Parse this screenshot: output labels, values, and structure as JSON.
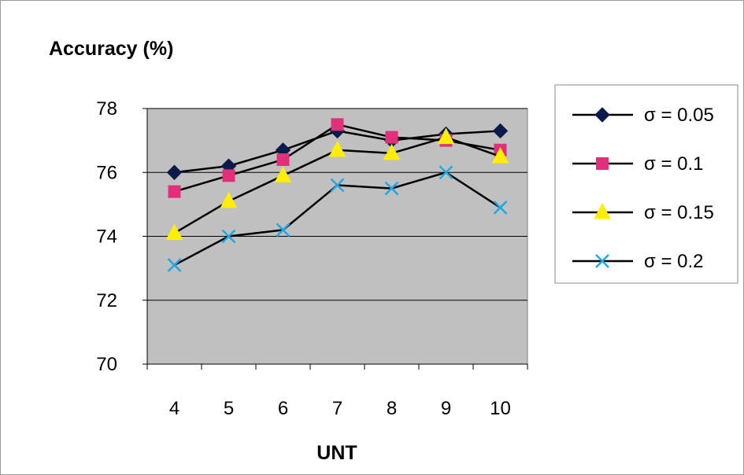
{
  "chart_data": {
    "type": "line",
    "title": "",
    "ylabel": "Accuracy (%)",
    "xlabel": "UNT",
    "x": [
      4,
      5,
      6,
      7,
      8,
      9,
      10
    ],
    "ylim": [
      70,
      78
    ],
    "yticks": [
      70,
      72,
      74,
      76,
      78
    ],
    "grid": true,
    "legend_position": "right",
    "series": [
      {
        "name": "σ = 0.05",
        "marker": "diamond",
        "marker_color": "#0a1a4a",
        "line_color": "#000000",
        "values": [
          76.0,
          76.2,
          76.7,
          77.3,
          77.0,
          77.2,
          77.3
        ]
      },
      {
        "name": "σ = 0.1",
        "marker": "square",
        "marker_color": "#e0307a",
        "line_color": "#000000",
        "values": [
          75.4,
          75.9,
          76.4,
          77.5,
          77.1,
          77.0,
          76.7
        ]
      },
      {
        "name": "σ = 0.15",
        "marker": "triangle",
        "marker_color": "#ffee00",
        "line_color": "#000000",
        "values": [
          74.1,
          75.1,
          75.9,
          76.7,
          76.6,
          77.1,
          76.5
        ]
      },
      {
        "name": "σ = 0.2",
        "marker": "x",
        "marker_color": "#20a8e0",
        "line_color": "#000000",
        "values": [
          73.1,
          74.0,
          74.2,
          75.6,
          75.5,
          76.0,
          74.9
        ]
      }
    ]
  }
}
